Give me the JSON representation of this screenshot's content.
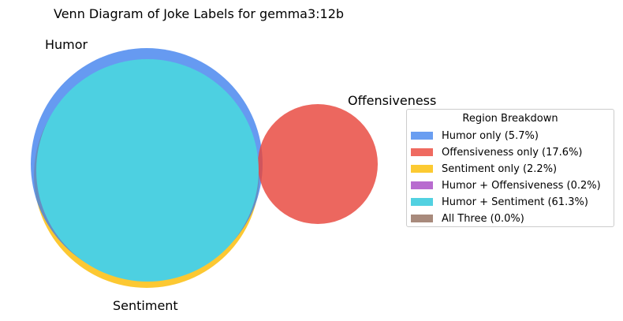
{
  "title": "Venn Diagram of Joke Labels for gemma3:12b",
  "sets": [
    {
      "name": "Humor",
      "color": "#3b7ded"
    },
    {
      "name": "Offensiveness",
      "color": "#e8453c"
    },
    {
      "name": "Sentiment",
      "color": "#fbbc05"
    }
  ],
  "overlap_color": "#4dd0e1",
  "legend": {
    "title": "Region Breakdown",
    "items": [
      {
        "label": "Humor only (5.7%)",
        "color": "#6a9ef1"
      },
      {
        "label": "Offensiveness only (17.6%)",
        "color": "#ef6a60"
      },
      {
        "label": "Sentiment only (2.2%)",
        "color": "#fcca32"
      },
      {
        "label": "Humor + Offensiveness (0.2%)",
        "color": "#b86bcf"
      },
      {
        "label": "Humor + Sentiment (61.3%)",
        "color": "#52d1e1"
      },
      {
        "label": "All Three (0.0%)",
        "color": "#a88a7c"
      }
    ]
  }
}
